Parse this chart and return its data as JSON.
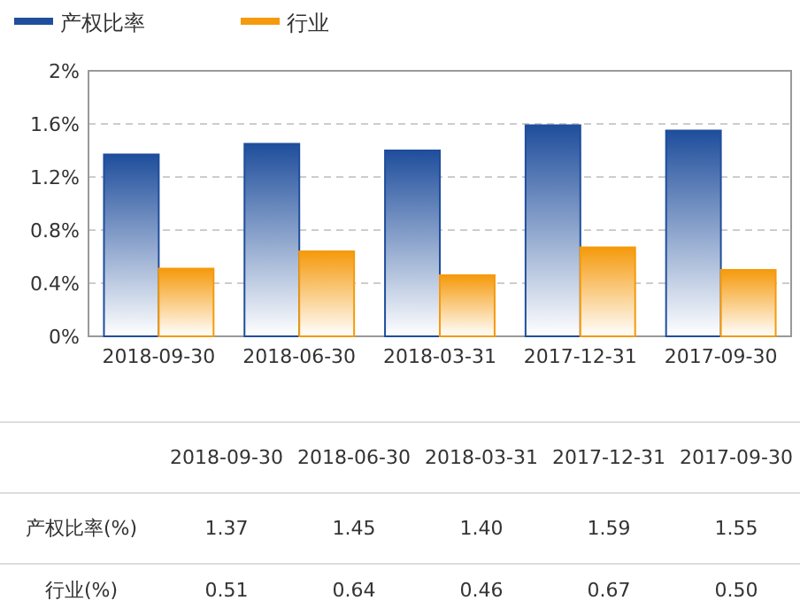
{
  "chart_data": {
    "type": "bar",
    "categories": [
      "2018-09-30",
      "2018-06-30",
      "2018-03-31",
      "2017-12-31",
      "2017-09-30"
    ],
    "series": [
      {
        "name": "产权比率",
        "color": "#1f4e9c",
        "values": [
          1.37,
          1.45,
          1.4,
          1.59,
          1.55
        ],
        "value_labels": [
          "1.37",
          "1.45",
          "1.40",
          "1.59",
          "1.55"
        ]
      },
      {
        "name": "行业",
        "color": "#f59a0c",
        "values": [
          0.51,
          0.64,
          0.46,
          0.67,
          0.5
        ],
        "value_labels": [
          "0.51",
          "0.64",
          "0.46",
          "0.67",
          "0.50"
        ]
      }
    ],
    "annotations": [
      "产权比率(%)",
      "行业(%)"
    ],
    "ylim": [
      0,
      2
    ],
    "yticks": [
      {
        "value": 0,
        "label": "0%"
      },
      {
        "value": 0.4,
        "label": "0.4%"
      },
      {
        "value": 0.8,
        "label": "0.8%"
      },
      {
        "value": 1.2,
        "label": "1.2%"
      },
      {
        "value": 1.6,
        "label": "1.6%"
      },
      {
        "value": 2,
        "label": "2%"
      }
    ],
    "grid": "y",
    "legend": "top left"
  }
}
